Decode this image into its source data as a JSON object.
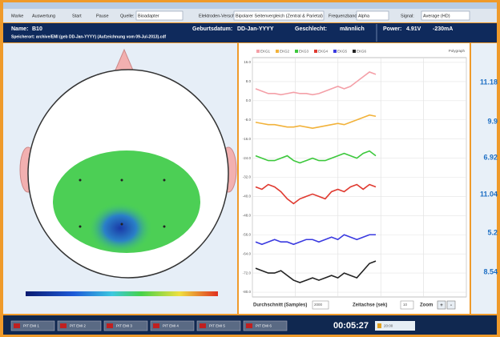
{
  "toolbar": {
    "items": [
      "Marke",
      "Auswertung",
      "Start",
      "Pause",
      "Quelle:",
      "Elektroden-Verschaltung:",
      "Frequenzband:",
      "Signal:"
    ],
    "selects": [
      "Bioadapter",
      "Bipolarer Seitenvergleich (Zentral & Parietal)",
      "Alpha",
      "Average (HD)"
    ]
  },
  "info": {
    "name_label": "Name:",
    "name": "B10",
    "birth_label": "Geburtsdatum:",
    "birth": "DD-Jan-YYYY",
    "sex_label": "Geschlecht:",
    "sex": "männlich",
    "power_label": "Power:",
    "power": "4.91V",
    "current": "-230mA",
    "path": "Speicherort: archive/EMI (geb DD-Jan-YYYY) (Aufzeichnung vom 09-Jul-2013).cdf"
  },
  "graph": {
    "mode": "Polygraph",
    "ylim": [
      -82,
      18
    ],
    "yticks": [
      {
        "value": 16,
        "label": "16.0"
      },
      {
        "value": 8,
        "label": "8.0"
      },
      {
        "value": 0,
        "label": "0.0"
      },
      {
        "value": -8,
        "label": "-8.0"
      },
      {
        "value": -16,
        "label": "-16.0"
      },
      {
        "value": -24,
        "label": "-24.0"
      },
      {
        "value": -32,
        "label": "-32.0"
      },
      {
        "value": -40,
        "label": "-40.0"
      },
      {
        "value": -48,
        "label": "-48.0"
      },
      {
        "value": -56,
        "label": "-56.0"
      },
      {
        "value": -64,
        "label": "-64.0"
      },
      {
        "value": -72,
        "label": "-72.0"
      },
      {
        "value": -80,
        "label": "-80.0"
      }
    ],
    "series": [
      {
        "name": "EKG1",
        "color": "#f4a0a8",
        "values": [
          5,
          4,
          3,
          3,
          2.5,
          3,
          3.5,
          3,
          3,
          2.5,
          3,
          4,
          5,
          6,
          5,
          6,
          8,
          10,
          12,
          11
        ]
      },
      {
        "name": "EKG2",
        "color": "#f2b23a",
        "values": [
          -9,
          -9.5,
          -10,
          -10,
          -10.5,
          -11,
          -11,
          -10.5,
          -11,
          -11.5,
          -11,
          -10.5,
          -10,
          -9.5,
          -10,
          -9,
          -8,
          -7,
          -6,
          -6.5
        ]
      },
      {
        "name": "EKG3",
        "color": "#3cc83c",
        "values": [
          -23,
          -24,
          -25,
          -25,
          -24,
          -23,
          -25,
          -26,
          -25,
          -24,
          -25,
          -25,
          -24,
          -23,
          -22,
          -23,
          -24,
          -22,
          -21,
          -23
        ]
      },
      {
        "name": "EKG4",
        "color": "#e03a30",
        "values": [
          -36,
          -37,
          -35,
          -36,
          -38,
          -41,
          -43,
          -41,
          -40,
          -39,
          -40,
          -41,
          -38,
          -37,
          -38,
          -36,
          -35,
          -37,
          -35,
          -36
        ]
      },
      {
        "name": "EKG5",
        "color": "#3a3ae0",
        "values": [
          -59,
          -60,
          -59,
          -58,
          -59,
          -59,
          -60,
          -59,
          -58,
          -58,
          -59,
          -58,
          -57,
          -58,
          -56,
          -57,
          -58,
          -57,
          -56,
          -56
        ]
      },
      {
        "name": "EKG6",
        "color": "#222222",
        "values": [
          -70,
          -71,
          -72,
          -72,
          -71,
          -73,
          -75,
          -76,
          -75,
          -74,
          -75,
          -74,
          -73,
          -74,
          -72,
          -73,
          -74,
          -71,
          -68,
          -67
        ]
      }
    ]
  },
  "controls": {
    "average_label": "Durchschnitt (Samples)",
    "average": "2000",
    "time_label": "Zeitachse (sek)",
    "time": "10",
    "zoom": "Zoom",
    "plus": "+",
    "minus": "-"
  },
  "values": [
    "11.18",
    "9.9",
    "6.92",
    "11.04",
    "5.2",
    "8.54"
  ],
  "footer": {
    "buttons": [
      "PIT EMI 1",
      "PIT EMI 2",
      "PIT EMI 3",
      "PIT EMI 4",
      "PIT EMI 5",
      "PIT EMI 6"
    ],
    "clock": "00:05:27",
    "status": "20:00"
  }
}
